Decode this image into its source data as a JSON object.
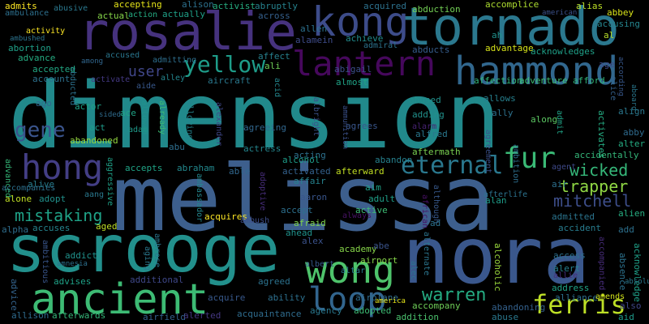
{
  "words": [
    {
      "text": "dimension",
      "color": "#21898b"
    },
    {
      "text": "melissa",
      "color": "#3d5f8d"
    },
    {
      "text": "scrooge",
      "color": "#22908c"
    },
    {
      "text": "nora",
      "color": "#3a578c"
    },
    {
      "text": "rosalie",
      "color": "#46327e"
    },
    {
      "text": "tornado",
      "color": "#2b788e"
    },
    {
      "text": "kong",
      "color": "#3d4c8a"
    },
    {
      "text": "hammond",
      "color": "#31678e"
    },
    {
      "text": "lantern",
      "color": "#46085c"
    },
    {
      "text": "ancient",
      "color": "#3dbb74"
    },
    {
      "text": "wong",
      "color": "#4ec36b"
    },
    {
      "text": "hong",
      "color": "#433e85"
    },
    {
      "text": "eternal",
      "color": "#2a788e"
    },
    {
      "text": "loop",
      "color": "#32658e"
    },
    {
      "text": "fur",
      "color": "#3aba76"
    },
    {
      "text": "ferris",
      "color": "#bddf26"
    },
    {
      "text": "yellow",
      "color": "#1e9c89"
    },
    {
      "text": "gene",
      "color": "#3a548c"
    },
    {
      "text": "mistaking",
      "color": "#1fa287"
    },
    {
      "text": "warren",
      "color": "#25ab82"
    },
    {
      "text": "mitchell",
      "color": "#3d4e8a"
    },
    {
      "text": "trapper",
      "color": "#8fd744"
    },
    {
      "text": "wicked",
      "color": "#35b779"
    },
    {
      "text": "user",
      "color": "#404688"
    },
    {
      "text": "fen",
      "color": "#2a798e"
    },
    {
      "text": "abduction",
      "color": "#73d055"
    },
    {
      "text": "accomplice",
      "color": "#addc30"
    },
    {
      "text": "alias",
      "color": "#bddf26"
    },
    {
      "text": "abbey",
      "color": "#d8e219"
    },
    {
      "text": "accusing",
      "color": "#25858e"
    },
    {
      "text": "al",
      "color": "#b8de29"
    },
    {
      "text": "admits",
      "color": "#fde725"
    },
    {
      "text": "abusive",
      "color": "#2a788e"
    },
    {
      "text": "accepting",
      "color": "#e5e419"
    },
    {
      "text": "alison",
      "color": "#2d718e"
    },
    {
      "text": "activist",
      "color": "#26ad81"
    },
    {
      "text": "abruptly",
      "color": "#26828e"
    },
    {
      "text": "ambulance",
      "color": "#2d708e"
    },
    {
      "text": "actual",
      "color": "#86d549"
    },
    {
      "text": "action",
      "color": "#25ac82"
    },
    {
      "text": "actually",
      "color": "#1fa188"
    },
    {
      "text": "across",
      "color": "#35608d"
    },
    {
      "text": "acquired",
      "color": "#2d718e"
    },
    {
      "text": "american",
      "color": "#3b518b"
    },
    {
      "text": "ambushed",
      "color": "#2c738e"
    },
    {
      "text": "activity",
      "color": "#fde725"
    },
    {
      "text": "allen",
      "color": "#2c718e"
    },
    {
      "text": "alamein",
      "color": "#3e4c8a"
    },
    {
      "text": "achieve",
      "color": "#228c8d"
    },
    {
      "text": "abducts",
      "color": "#365d8d"
    },
    {
      "text": "advantage",
      "color": "#d5e21a"
    },
    {
      "text": "acknowledges",
      "color": "#1fa188"
    },
    {
      "text": "abortion",
      "color": "#1fa088"
    },
    {
      "text": "advance",
      "color": "#25ac82"
    },
    {
      "text": "accused",
      "color": "#2a768e"
    },
    {
      "text": "admitting",
      "color": "#2e6f8e"
    },
    {
      "text": "among",
      "color": "#31668e"
    },
    {
      "text": "abducted",
      "color": "#2c728e"
    },
    {
      "text": "affect",
      "color": "#27808e"
    },
    {
      "text": "ali",
      "color": "#6ece58"
    },
    {
      "text": "abigail",
      "color": "#3c4f8a"
    },
    {
      "text": "admiral",
      "color": "#2c738e"
    },
    {
      "text": "ah",
      "color": "#21918c"
    },
    {
      "text": "age",
      "color": "#3e4a89"
    },
    {
      "text": "according",
      "color": "#38588c"
    },
    {
      "text": "accepted",
      "color": "#22a884"
    },
    {
      "text": "account",
      "color": "#2d718e"
    },
    {
      "text": "activate",
      "color": "#443983"
    },
    {
      "text": "aide",
      "color": "#38588c"
    },
    {
      "text": "alley",
      "color": "#24868e"
    },
    {
      "text": "aircraft",
      "color": "#2a788e"
    },
    {
      "text": "acid",
      "color": "#24878e"
    },
    {
      "text": "almost",
      "color": "#20a386"
    },
    {
      "text": "affection",
      "color": "#32b67a"
    },
    {
      "text": "adventure",
      "color": "#3dbc74"
    },
    {
      "text": "afford",
      "color": "#31b57b"
    },
    {
      "text": "alice",
      "color": "#34618d"
    },
    {
      "text": "aboard",
      "color": "#2a788e"
    },
    {
      "text": "ago",
      "color": "#31678e"
    },
    {
      "text": "actor",
      "color": "#1fa287"
    },
    {
      "text": "ace",
      "color": "#20a386"
    },
    {
      "text": "sided",
      "color": "#2f6c8e"
    },
    {
      "text": "act",
      "color": "#1e9b8a"
    },
    {
      "text": "allowed",
      "color": "#20928c"
    },
    {
      "text": "already",
      "color": "#3dbc74"
    },
    {
      "text": "allowing",
      "color": "#25848e"
    },
    {
      "text": "alexander",
      "color": "#3f4788"
    },
    {
      "text": "agreeing",
      "color": "#31678e"
    },
    {
      "text": "albright",
      "color": "#3b528b"
    },
    {
      "text": "ammunition",
      "color": "#3b518b"
    },
    {
      "text": "agrees",
      "color": "#39568c"
    },
    {
      "text": "abused",
      "color": "#21918c"
    },
    {
      "text": "adding",
      "color": "#21918c"
    },
    {
      "text": "alarm",
      "color": "#482374"
    },
    {
      "text": "alfred",
      "color": "#2a788e"
    },
    {
      "text": "ally",
      "color": "#2d718e"
    },
    {
      "text": "allows",
      "color": "#27808e"
    },
    {
      "text": "along",
      "color": "#5cc863"
    },
    {
      "text": "admit",
      "color": "#20a386"
    },
    {
      "text": "activates",
      "color": "#25ac82"
    },
    {
      "text": "align",
      "color": "#2a788e"
    },
    {
      "text": "abby",
      "color": "#2f6b8e"
    },
    {
      "text": "alter",
      "color": "#25ac82"
    },
    {
      "text": "accidentally",
      "color": "#34b679"
    },
    {
      "text": "adam",
      "color": "#1f998a"
    },
    {
      "text": "abandoned",
      "color": "#95d840"
    },
    {
      "text": "advanced",
      "color": "#35b779"
    },
    {
      "text": "abu",
      "color": "#2e6e8e"
    },
    {
      "text": "actress",
      "color": "#24868e"
    },
    {
      "text": "acting",
      "color": "#2d718e"
    },
    {
      "text": "aftermath",
      "color": "#7ad151"
    },
    {
      "text": "agreement",
      "color": "#3b518b"
    },
    {
      "text": "ambition",
      "color": "#2e6f8e"
    },
    {
      "text": "agent",
      "color": "#3e4989"
    },
    {
      "text": "abandon",
      "color": "#26818e"
    },
    {
      "text": "accepts",
      "color": "#20a486"
    },
    {
      "text": "abraham",
      "color": "#23898e"
    },
    {
      "text": "alcohol",
      "color": "#1e9c89"
    },
    {
      "text": "afterward",
      "color": "#c2df23"
    },
    {
      "text": "activated",
      "color": "#34618d"
    },
    {
      "text": "able",
      "color": "#31678e"
    },
    {
      "text": "affair",
      "color": "#26828e"
    },
    {
      "text": "aggressive",
      "color": "#1fa188"
    },
    {
      "text": "ambassador",
      "color": "#24878e"
    },
    {
      "text": "allowing",
      "color": "#25848e"
    },
    {
      "text": "adoptive",
      "color": "#472d7b"
    },
    {
      "text": "aaron",
      "color": "#39558c"
    },
    {
      "text": "aim",
      "color": "#1fa187"
    },
    {
      "text": "adult",
      "color": "#1fa088"
    },
    {
      "text": "although",
      "color": "#38598c"
    },
    {
      "text": "african",
      "color": "#471164"
    },
    {
      "text": "alan",
      "color": "#1e9d89"
    },
    {
      "text": "afterlife",
      "color": "#2c738e"
    },
    {
      "text": "air",
      "color": "#2d708e"
    },
    {
      "text": "alien",
      "color": "#26ad81"
    },
    {
      "text": "admitted",
      "color": "#2b748e"
    },
    {
      "text": "accident",
      "color": "#287c8e"
    },
    {
      "text": "add",
      "color": "#2d708e"
    },
    {
      "text": "accompanied",
      "color": "#472c7a"
    },
    {
      "text": "alive",
      "color": "#287d8e"
    },
    {
      "text": "alone",
      "color": "#c0df25"
    },
    {
      "text": "adopt",
      "color": "#21918c"
    },
    {
      "text": "accompanies",
      "color": "#2d708e"
    },
    {
      "text": "aang",
      "color": "#2a788e"
    },
    {
      "text": "ambrose",
      "color": "#2a768e"
    },
    {
      "text": "acquires",
      "color": "#fde725"
    },
    {
      "text": "ambush",
      "color": "#3d4e8a"
    },
    {
      "text": "accept",
      "color": "#2d708e"
    },
    {
      "text": "always",
      "color": "#471365"
    },
    {
      "text": "afraid",
      "color": "#7fd34e"
    },
    {
      "text": "ahead",
      "color": "#20928c"
    },
    {
      "text": "active",
      "color": "#3dbc74"
    },
    {
      "text": "ad",
      "color": "#2d718e"
    },
    {
      "text": "alpha",
      "color": "#2e6e8e"
    },
    {
      "text": "accuses",
      "color": "#25848e"
    },
    {
      "text": "aged",
      "color": "#bddf26"
    },
    {
      "text": "ambitious",
      "color": "#39568c"
    },
    {
      "text": "aging",
      "color": "#2a788e"
    },
    {
      "text": "alex",
      "color": "#3b528b"
    },
    {
      "text": "academy",
      "color": "#86d549"
    },
    {
      "text": "abe",
      "color": "#3a538b"
    },
    {
      "text": "airport",
      "color": "#86d549"
    },
    {
      "text": "alec",
      "color": "#2c728e"
    },
    {
      "text": "alternate",
      "color": "#2b758e"
    },
    {
      "text": "addict",
      "color": "#20928c"
    },
    {
      "text": "amnesia",
      "color": "#2d708e"
    },
    {
      "text": "albert",
      "color": "#38598c"
    },
    {
      "text": "altar",
      "color": "#287c8e"
    },
    {
      "text": "alcoholic",
      "color": "#9bd93c"
    },
    {
      "text": "access",
      "color": "#2d708e"
    },
    {
      "text": "alert",
      "color": "#27808e"
    },
    {
      "text": "allie",
      "color": "#472e7c"
    },
    {
      "text": "absence",
      "color": "#2c728e"
    },
    {
      "text": "acknowledge",
      "color": "#1fa088"
    },
    {
      "text": "advises",
      "color": "#1fa287"
    },
    {
      "text": "additional",
      "color": "#3f4889"
    },
    {
      "text": "agreed",
      "color": "#2c728e"
    },
    {
      "text": "acquire",
      "color": "#38598c"
    },
    {
      "text": "ability",
      "color": "#2d708e"
    },
    {
      "text": "airplane",
      "color": "#2f6c8e"
    },
    {
      "text": "address",
      "color": "#20a486"
    },
    {
      "text": "alliance",
      "color": "#2d708e"
    },
    {
      "text": "amends",
      "color": "#d2e21b"
    },
    {
      "text": "advice",
      "color": "#33638d"
    },
    {
      "text": "allison",
      "color": "#2f6b8e"
    },
    {
      "text": "afterwards",
      "color": "#35b779"
    },
    {
      "text": "airfield",
      "color": "#34618d"
    },
    {
      "text": "alerted",
      "color": "#453781"
    },
    {
      "text": "acquaintance",
      "color": "#2f6c8e"
    },
    {
      "text": "agency",
      "color": "#2a788e"
    },
    {
      "text": "adopted",
      "color": "#3dbc74"
    },
    {
      "text": "america",
      "color": "#e5e419"
    },
    {
      "text": "accompany",
      "color": "#6ece58"
    },
    {
      "text": "addition",
      "color": "#4ac16d"
    },
    {
      "text": "abandoning",
      "color": "#34618d"
    },
    {
      "text": "abuse",
      "color": "#2a788e"
    },
    {
      "text": "aid",
      "color": "#1e9b8a"
    },
    {
      "text": "also",
      "color": "#3f4788"
    },
    {
      "text": "absolutely",
      "color": "#2a788e"
    }
  ]
}
